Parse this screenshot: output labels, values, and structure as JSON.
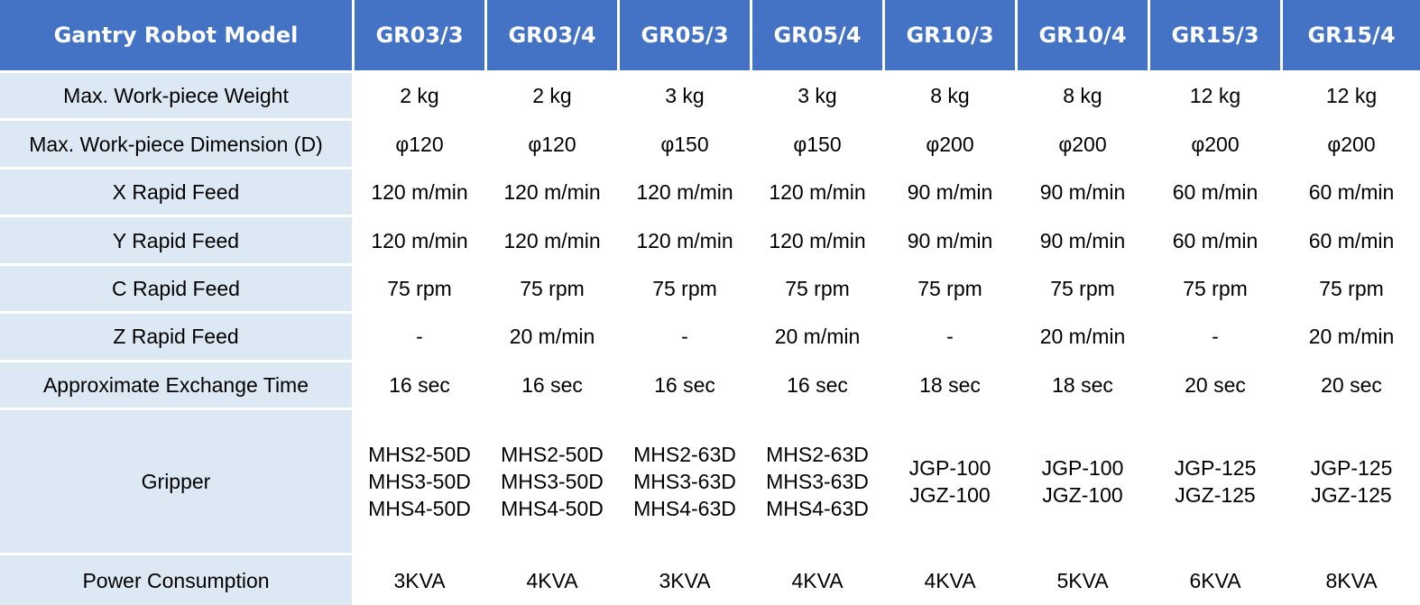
{
  "table": {
    "header_label": "Gantry Robot Model",
    "models": [
      "GR03/3",
      "GR03/4",
      "GR05/3",
      "GR05/4",
      "GR10/3",
      "GR10/4",
      "GR15/3",
      "GR15/4"
    ],
    "rows": [
      {
        "label": "Max. Work-piece Weight",
        "values": [
          "2 kg",
          "2 kg",
          "3 kg",
          "3 kg",
          "8 kg",
          "8 kg",
          "12 kg",
          "12 kg"
        ]
      },
      {
        "label": "Max. Work-piece Dimension (D)",
        "values": [
          "φ120",
          "φ120",
          "φ150",
          "φ150",
          "φ200",
          "φ200",
          "φ200",
          "φ200"
        ]
      },
      {
        "label": "X Rapid Feed",
        "values": [
          "120 m/min",
          "120 m/min",
          "120 m/min",
          "120 m/min",
          "90 m/min",
          "90 m/min",
          "60 m/min",
          "60 m/min"
        ]
      },
      {
        "label": "Y Rapid Feed",
        "values": [
          "120 m/min",
          "120 m/min",
          "120 m/min",
          "120 m/min",
          "90 m/min",
          "90 m/min",
          "60 m/min",
          "60 m/min"
        ]
      },
      {
        "label": "C Rapid Feed",
        "values": [
          "75 rpm",
          "75 rpm",
          "75 rpm",
          "75 rpm",
          "75 rpm",
          "75 rpm",
          "75 rpm",
          "75 rpm"
        ]
      },
      {
        "label": "Z Rapid Feed",
        "values": [
          "-",
          "20 m/min",
          "-",
          "20 m/min",
          "-",
          "20 m/min",
          "-",
          "20 m/min"
        ]
      },
      {
        "label": "Approximate Exchange Time",
        "values": [
          "16 sec",
          "16 sec",
          "16 sec",
          "16 sec",
          "18 sec",
          "18 sec",
          "20 sec",
          "20 sec"
        ]
      },
      {
        "label": "Gripper",
        "values": [
          [
            "MHS2-50D",
            "MHS3-50D",
            "MHS4-50D"
          ],
          [
            "MHS2-50D",
            "MHS3-50D",
            "MHS4-50D"
          ],
          [
            "MHS2-63D",
            "MHS3-63D",
            "MHS4-63D"
          ],
          [
            "MHS2-63D",
            "MHS3-63D",
            "MHS4-63D"
          ],
          [
            "JGP-100",
            "JGZ-100"
          ],
          [
            "JGP-100",
            "JGZ-100"
          ],
          [
            "JGP-125",
            "JGZ-125"
          ],
          [
            "JGP-125",
            "JGZ-125"
          ]
        ]
      },
      {
        "label": "Power Consumption",
        "values": [
          "3KVA",
          "4KVA",
          "3KVA",
          "4KVA",
          "4KVA",
          "5KVA",
          "6KVA",
          "8KVA"
        ]
      }
    ]
  },
  "colors": {
    "header_bg": "#4472c4",
    "label_bg": "#dde8f5",
    "cell_bg": "#ffffff"
  }
}
